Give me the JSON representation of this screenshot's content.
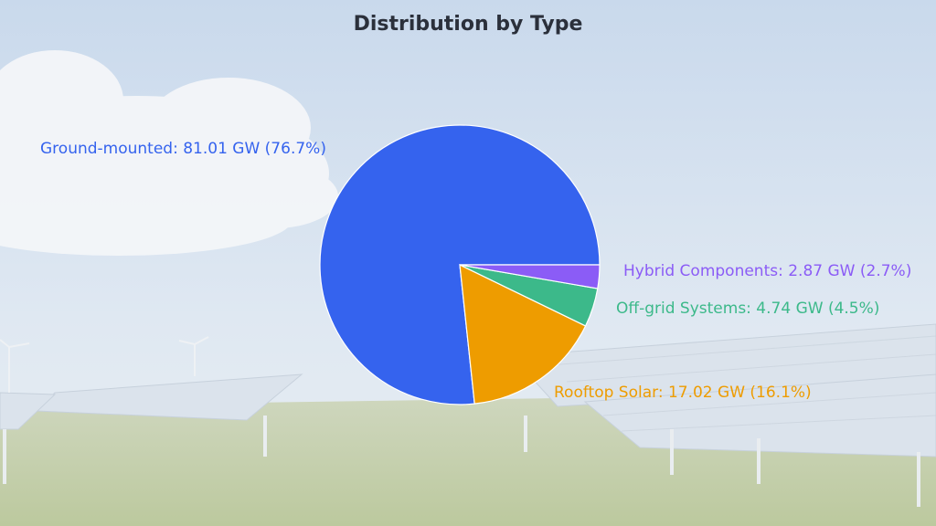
{
  "chart_data": {
    "type": "pie",
    "title": "Distribution by Type",
    "unit": "GW",
    "slices": [
      {
        "name": "Ground-mounted",
        "value": 81.01,
        "percent": 76.7,
        "label": "Ground-mounted: 81.01 GW (76.7%)",
        "color": "#3563ee"
      },
      {
        "name": "Rooftop Solar",
        "value": 17.02,
        "percent": 16.1,
        "label": "Rooftop Solar: 17.02 GW (16.1%)",
        "color": "#ee9c00"
      },
      {
        "name": "Off-grid Systems",
        "value": 4.74,
        "percent": 4.5,
        "label": "Off-grid Systems: 4.74 GW (4.5%)",
        "color": "#3cb98a"
      },
      {
        "name": "Hybrid Components",
        "value": 2.87,
        "percent": 2.7,
        "label": "Hybrid Components: 2.87 GW (2.7%)",
        "color": "#8b5cf6"
      }
    ],
    "legend": "none",
    "background": "solar-farm-photo"
  }
}
